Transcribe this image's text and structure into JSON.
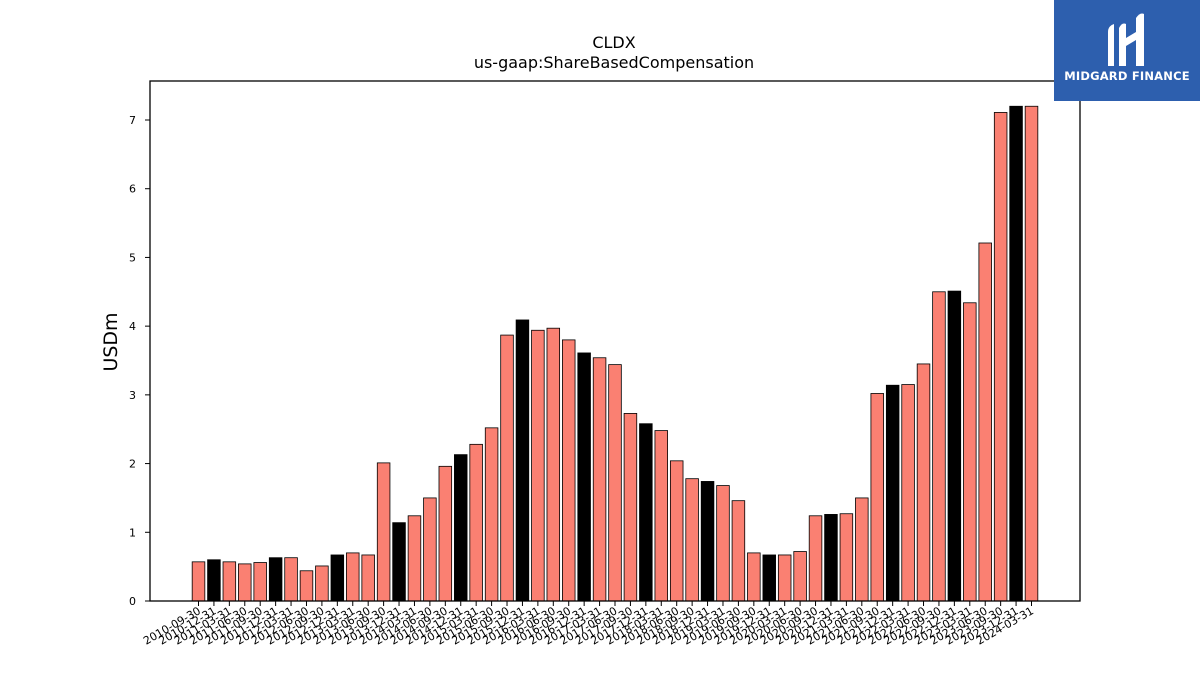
{
  "logo": {
    "text": "MIDGARD FINANCE",
    "icon": "midgard-logo-mark",
    "background": "#2d5fae"
  },
  "chart_data": {
    "type": "bar",
    "title": "CLDX",
    "subtitle": "us-gaap:ShareBasedCompensation",
    "xlabel": "",
    "ylabel": "USDm",
    "ylim": [
      0,
      7.55
    ],
    "yticks": [
      0,
      1,
      2,
      3,
      4,
      5,
      6,
      7
    ],
    "grid": false,
    "colors": {
      "quarter": "#fa8072",
      "year_end": "#000000",
      "edge": "#000000"
    },
    "categories": [
      "2010-09-30",
      "2010-12-31",
      "2011-03-31",
      "2011-06-30",
      "2011-09-30",
      "2011-12-31",
      "2012-03-31",
      "2012-06-30",
      "2012-09-30",
      "2012-12-31",
      "2013-03-31",
      "2013-06-30",
      "2013-09-30",
      "2013-12-31",
      "2014-03-31",
      "2014-06-30",
      "2014-09-30",
      "2014-12-31",
      "2015-03-31",
      "2015-06-30",
      "2015-09-30",
      "2015-12-31",
      "2016-03-31",
      "2016-06-30",
      "2016-09-30",
      "2016-12-31",
      "2017-03-31",
      "2017-06-30",
      "2017-09-30",
      "2017-12-31",
      "2018-03-31",
      "2018-06-30",
      "2018-09-30",
      "2018-12-31",
      "2019-03-31",
      "2019-06-30",
      "2019-09-30",
      "2019-12-31",
      "2020-03-31",
      "2020-06-30",
      "2020-09-30",
      "2020-12-31",
      "2021-03-31",
      "2021-06-30",
      "2021-09-30",
      "2021-12-31",
      "2022-03-31",
      "2022-06-30",
      "2022-09-30",
      "2022-12-31",
      "2023-03-31",
      "2023-06-30",
      "2023-09-30",
      "2023-12-31",
      "2024-03-31"
    ],
    "values": [
      0.57,
      0.6,
      0.57,
      0.54,
      0.56,
      0.63,
      0.63,
      0.44,
      0.51,
      0.67,
      0.7,
      0.67,
      2.01,
      1.14,
      1.24,
      1.5,
      1.96,
      2.13,
      2.28,
      2.52,
      3.87,
      4.09,
      3.94,
      3.97,
      3.8,
      3.61,
      3.54,
      3.44,
      2.73,
      2.58,
      2.48,
      2.04,
      1.78,
      1.74,
      1.68,
      1.46,
      0.7,
      0.67,
      0.67,
      0.72,
      1.24,
      1.26,
      1.27,
      1.5,
      3.02,
      3.14,
      3.15,
      3.45,
      4.5,
      4.51,
      4.34,
      5.21,
      7.11,
      7.2,
      7.2
    ]
  }
}
